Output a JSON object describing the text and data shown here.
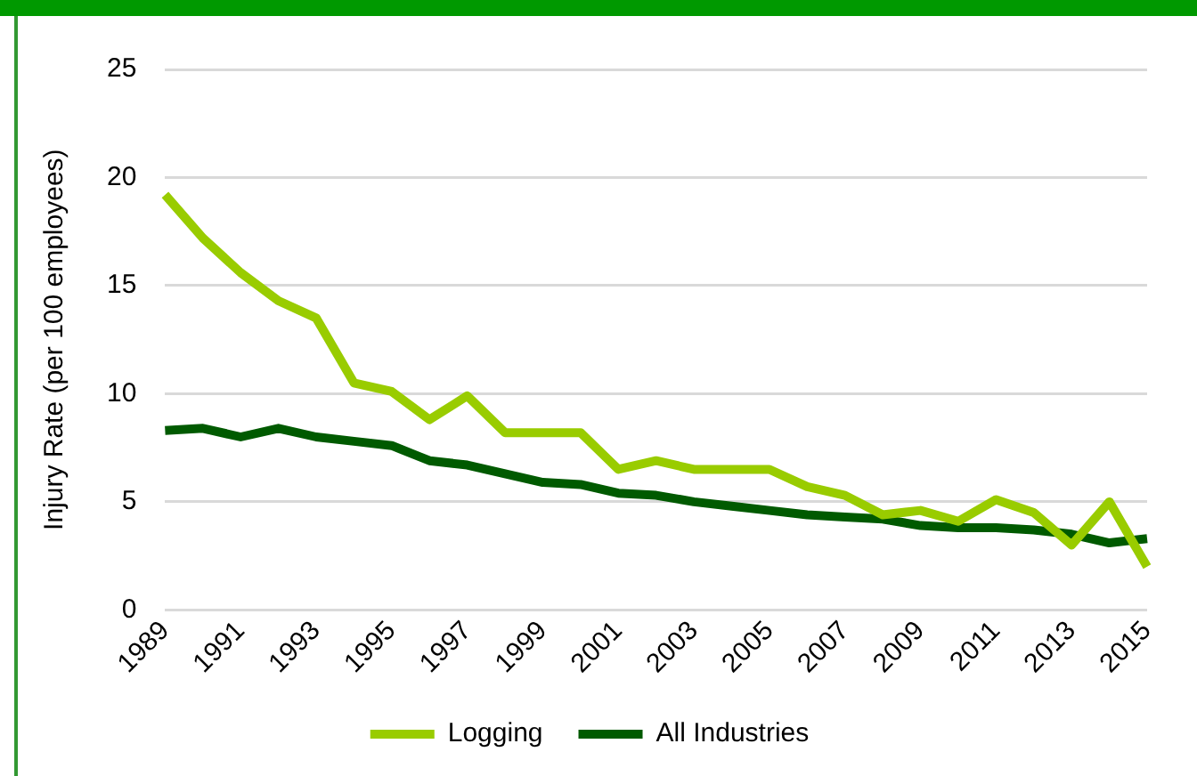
{
  "chart_data": {
    "type": "line",
    "ylabel": "Injury Rate (per 100 employees)",
    "categories": [
      "1989",
      null,
      "1991",
      null,
      "1993",
      null,
      "1995",
      null,
      "1997",
      null,
      "1999",
      null,
      "2001",
      null,
      "2003",
      null,
      "2005",
      null,
      "2007",
      null,
      "2009",
      null,
      "2011",
      null,
      "2013",
      null,
      "2015"
    ],
    "series": [
      {
        "name": "Logging",
        "color": "#99cc00",
        "values": [
          19.2,
          17.2,
          15.6,
          14.3,
          13.5,
          10.5,
          10.1,
          8.8,
          9.9,
          8.2,
          8.2,
          8.2,
          6.5,
          6.9,
          6.5,
          6.5,
          6.5,
          5.7,
          5.3,
          4.4,
          4.6,
          4.1,
          5.1,
          4.5,
          3.0,
          5.0,
          2.0
        ]
      },
      {
        "name": "All Industries",
        "color": "#005a00",
        "values": [
          8.3,
          8.4,
          8.0,
          8.4,
          8.0,
          7.8,
          7.6,
          6.9,
          6.7,
          6.3,
          5.9,
          5.8,
          5.4,
          5.3,
          5.0,
          4.8,
          4.6,
          4.4,
          4.3,
          4.2,
          3.9,
          3.8,
          3.8,
          3.7,
          3.5,
          3.1,
          3.3
        ]
      }
    ],
    "ylim": [
      0,
      25
    ],
    "yticks": [
      0,
      5,
      10,
      15,
      20,
      25
    ],
    "grid": "y",
    "legend": "bottom",
    "marker": "none",
    "line_style": "solid"
  }
}
